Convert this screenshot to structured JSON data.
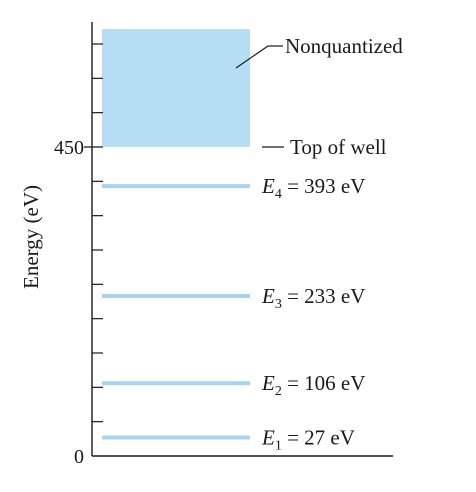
{
  "axis": {
    "ylabel": "Energy (eV)",
    "ticks": [
      {
        "value": 0,
        "label": "0"
      },
      {
        "value": 450,
        "label": "450"
      }
    ]
  },
  "chart_data": {
    "type": "energy-level-diagram",
    "ylabel": "Energy (eV)",
    "ylim": [
      0,
      650
    ],
    "continuum": {
      "label": "Nonquantized",
      "from": 450,
      "to": 655,
      "color": "#b5ddf4"
    },
    "top_of_well": {
      "value": 450,
      "label": "Top of well"
    },
    "levels": [
      {
        "symbol": "E",
        "subscript": "1",
        "text": " = 27 eV",
        "value": 27
      },
      {
        "symbol": "E",
        "subscript": "2",
        "text": " = 106 eV",
        "value": 106
      },
      {
        "symbol": "E",
        "subscript": "3",
        "text": " = 233 eV",
        "value": 233
      },
      {
        "symbol": "E",
        "subscript": "4",
        "text": " = 393 eV",
        "value": 393
      }
    ],
    "level_color": "#a7d5f1"
  }
}
